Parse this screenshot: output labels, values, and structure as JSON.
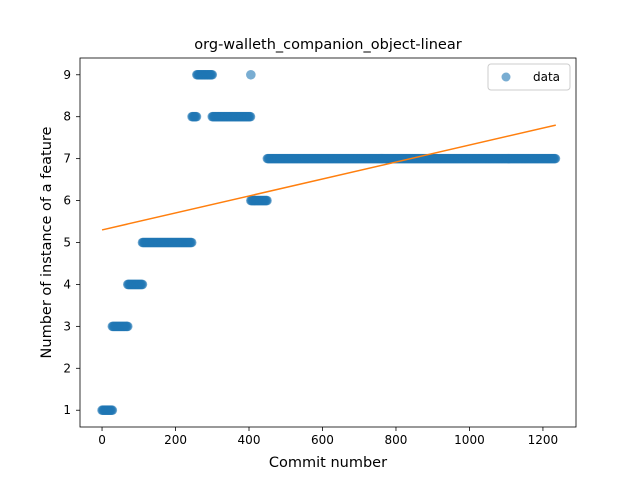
{
  "chart_data": {
    "type": "scatter",
    "title": "org-walleth_companion_object-linear",
    "xlabel": "Commit number",
    "ylabel": "Number of instance of a feature",
    "xlim": [
      -60,
      1290
    ],
    "ylim": [
      0.6,
      9.4
    ],
    "xticks": [
      0,
      200,
      400,
      600,
      800,
      1000,
      1200
    ],
    "yticks": [
      1,
      2,
      3,
      4,
      5,
      6,
      7,
      8,
      9
    ],
    "grid": false,
    "legend": {
      "position": "top-right",
      "entries": [
        "data"
      ]
    },
    "series": [
      {
        "name": "data",
        "kind": "scatter",
        "color": "#1f77b4",
        "segments": [
          {
            "x_start": 0,
            "x_end": 28,
            "y": 1
          },
          {
            "x_start": 28,
            "x_end": 70,
            "y": 3
          },
          {
            "x_start": 70,
            "x_end": 110,
            "y": 4
          },
          {
            "x_start": 110,
            "x_end": 245,
            "y": 5
          },
          {
            "x_start": 245,
            "x_end": 258,
            "y": 8
          },
          {
            "x_start": 258,
            "x_end": 300,
            "y": 9
          },
          {
            "x_start": 300,
            "x_end": 405,
            "y": 8
          },
          {
            "x_start": 405,
            "x_end": 405,
            "y": 9
          },
          {
            "x_start": 405,
            "x_end": 450,
            "y": 6
          },
          {
            "x_start": 450,
            "x_end": 1235,
            "y": 7
          }
        ]
      },
      {
        "kind": "line",
        "color": "#ff7f0e",
        "points": [
          [
            0,
            5.3
          ],
          [
            1235,
            7.8
          ]
        ]
      }
    ]
  }
}
